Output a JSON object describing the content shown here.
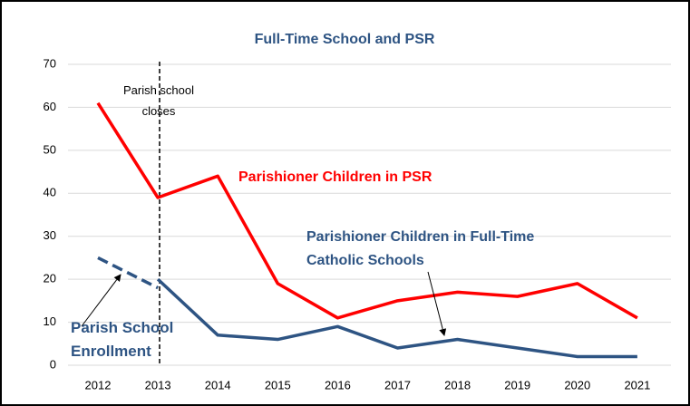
{
  "chart_data": {
    "type": "line",
    "title": "Full-Time School and PSR",
    "categories": [
      "2012",
      "2013",
      "2014",
      "2015",
      "2016",
      "2017",
      "2018",
      "2019",
      "2020",
      "2021"
    ],
    "series": [
      {
        "name": "Parishioner Children in PSR",
        "color": "#ff0000",
        "values": [
          61,
          39,
          44,
          19,
          11,
          15,
          17,
          16,
          19,
          11
        ]
      },
      {
        "name": "Parishioner Children in Full-Time Catholic Schools",
        "color": "#2e5483",
        "values": [
          null,
          20,
          7,
          6,
          9,
          4,
          6,
          4,
          2,
          2
        ]
      },
      {
        "name": "Parish School Enrollment",
        "color": "#2e5483",
        "style": "dashed",
        "values": [
          25,
          18,
          null,
          null,
          null,
          null,
          null,
          null,
          null,
          null
        ]
      }
    ],
    "annotations": [
      "Parish school closes"
    ],
    "ylim": [
      0,
      70
    ],
    "yticks": [
      0,
      10,
      20,
      30,
      40,
      50,
      60,
      70
    ],
    "grid": true
  }
}
